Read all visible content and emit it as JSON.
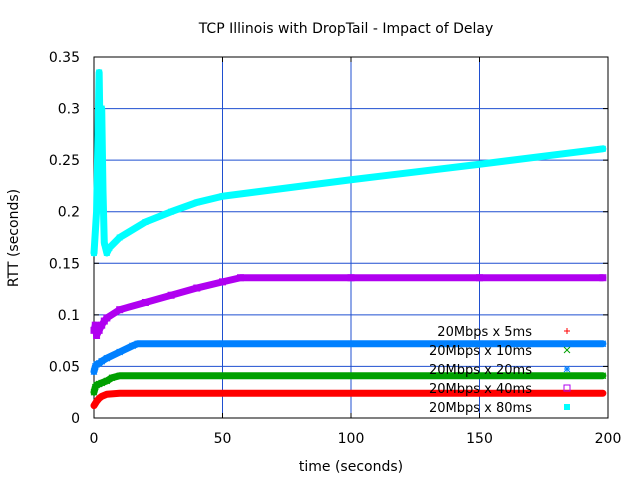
{
  "chart_data": {
    "type": "scatter",
    "title": "TCP Illinois with DropTail - Impact of Delay",
    "xlabel": "time (seconds)",
    "ylabel": "RTT (seconds)",
    "xlim": [
      0,
      200
    ],
    "ylim": [
      0,
      0.35
    ],
    "x_ticks": [
      "0",
      "50",
      "100",
      "150",
      "200"
    ],
    "y_ticks": [
      "0",
      "0.05",
      "0.1",
      "0.15",
      "0.2",
      "0.25",
      "0.3",
      "0.35"
    ],
    "grid": true,
    "grid_color": "#1f4fd0",
    "legend_position": "bottom-right",
    "series": [
      {
        "name": "20Mbps x 5ms",
        "color": "#ff0000",
        "marker": "plus",
        "x": [
          0,
          1,
          2,
          3,
          5,
          10,
          50,
          100,
          150,
          198
        ],
        "y": [
          0.012,
          0.016,
          0.019,
          0.021,
          0.023,
          0.024,
          0.024,
          0.024,
          0.024,
          0.024
        ]
      },
      {
        "name": "20Mbps x 10ms",
        "color": "#00a000",
        "marker": "x",
        "x": [
          0,
          0.5,
          1,
          2,
          3,
          5,
          7,
          10,
          50,
          100,
          150,
          198
        ],
        "y": [
          0.025,
          0.03,
          0.032,
          0.033,
          0.034,
          0.036,
          0.039,
          0.041,
          0.041,
          0.041,
          0.041,
          0.041
        ]
      },
      {
        "name": "20Mbps x 20ms",
        "color": "#0080ff",
        "marker": "star",
        "x": [
          0,
          0.5,
          1,
          2,
          3,
          5,
          10,
          15,
          17,
          50,
          100,
          150,
          198
        ],
        "y": [
          0.045,
          0.05,
          0.052,
          0.053,
          0.055,
          0.058,
          0.064,
          0.07,
          0.072,
          0.072,
          0.072,
          0.072,
          0.072
        ]
      },
      {
        "name": "20Mbps x 40ms",
        "color": "#b000f0",
        "marker": "square-open",
        "x": [
          0,
          0.5,
          1,
          2,
          3,
          4,
          5,
          10,
          20,
          30,
          40,
          50,
          57,
          100,
          150,
          198
        ],
        "y": [
          0.085,
          0.09,
          0.08,
          0.085,
          0.09,
          0.094,
          0.097,
          0.105,
          0.112,
          0.119,
          0.126,
          0.132,
          0.136,
          0.136,
          0.136,
          0.136
        ]
      },
      {
        "name": "20Mbps x 80ms",
        "color": "#00ffff",
        "marker": "square-filled",
        "x": [
          0,
          1,
          2,
          2.5,
          3,
          3.5,
          4,
          5,
          6,
          10,
          20,
          30,
          40,
          50,
          100,
          150,
          198
        ],
        "y": [
          0.16,
          0.2,
          0.335,
          0.25,
          0.3,
          0.22,
          0.17,
          0.16,
          0.165,
          0.175,
          0.19,
          0.2,
          0.209,
          0.215,
          0.231,
          0.246,
          0.261
        ]
      }
    ]
  }
}
